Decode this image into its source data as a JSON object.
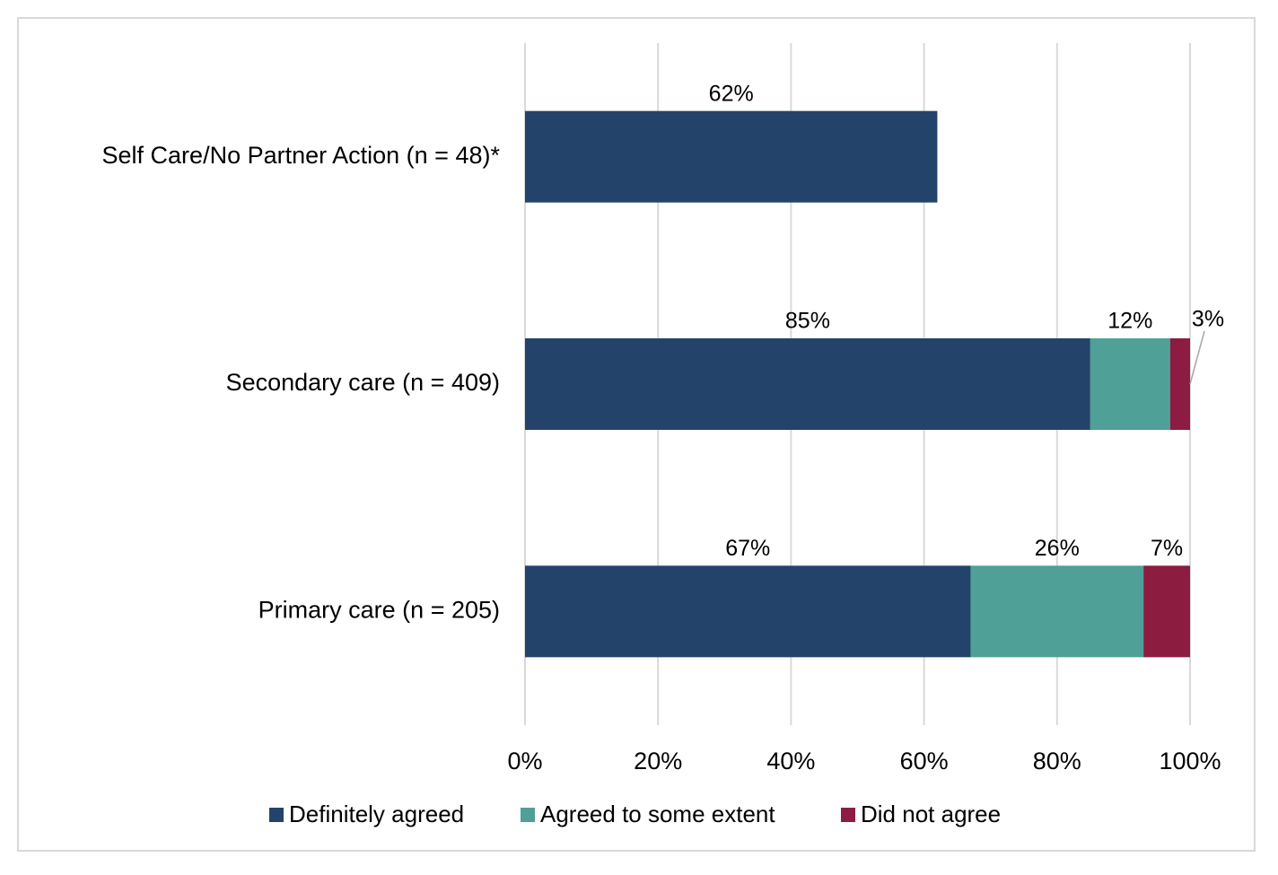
{
  "chart_data": {
    "type": "stacked-bar-horizontal",
    "categories": [
      "Self Care/No Partner Action (n = 48)*",
      "Secondary care (n = 409)",
      "Primary care (n = 205)"
    ],
    "series": [
      {
        "name": "Definitely agreed",
        "color": "#23436a",
        "values": [
          62,
          85,
          67
        ],
        "value_labels": [
          "62%",
          "85%",
          "67%"
        ]
      },
      {
        "name": "Agreed to some extent",
        "color": "#4fa096",
        "values": [
          null,
          12,
          26
        ],
        "value_labels": [
          null,
          "12%",
          "26%"
        ]
      },
      {
        "name": "Did not agree",
        "color": "#8c1c40",
        "values": [
          null,
          3,
          7
        ],
        "value_labels": [
          null,
          "3%",
          "7%"
        ]
      }
    ],
    "xlim": [
      0,
      100
    ],
    "xticks": [
      {
        "value": 0,
        "label": "0%"
      },
      {
        "value": 20,
        "label": "20%"
      },
      {
        "value": 40,
        "label": "40%"
      },
      {
        "value": 60,
        "label": "60%"
      },
      {
        "value": 80,
        "label": "80%"
      },
      {
        "value": 100,
        "label": "100%"
      }
    ],
    "grid": true,
    "legend": "bottom"
  }
}
